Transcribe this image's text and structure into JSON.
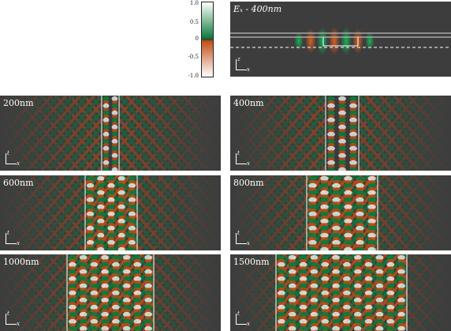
{
  "colorbar": {
    "ticks": [
      "1.0",
      "0.5",
      "0",
      "-0.5",
      "-1.0"
    ],
    "positive_color": "#0f7a3c",
    "negative_color": "#c24d16",
    "zero_color": "#3a3a3a"
  },
  "geometry_panel": {
    "label": "Eₓ - 400nm",
    "axis_z": "z",
    "axis_x": "x"
  },
  "panels": [
    {
      "label": "200nm",
      "width_nm": 200
    },
    {
      "label": "400nm",
      "width_nm": 400
    },
    {
      "label": "600nm",
      "width_nm": 600
    },
    {
      "label": "800nm",
      "width_nm": 800
    },
    {
      "label": "1000nm",
      "width_nm": 1000
    },
    {
      "label": "1500nm",
      "width_nm": 1500
    }
  ],
  "axis": {
    "t": "t",
    "x": "x"
  }
}
